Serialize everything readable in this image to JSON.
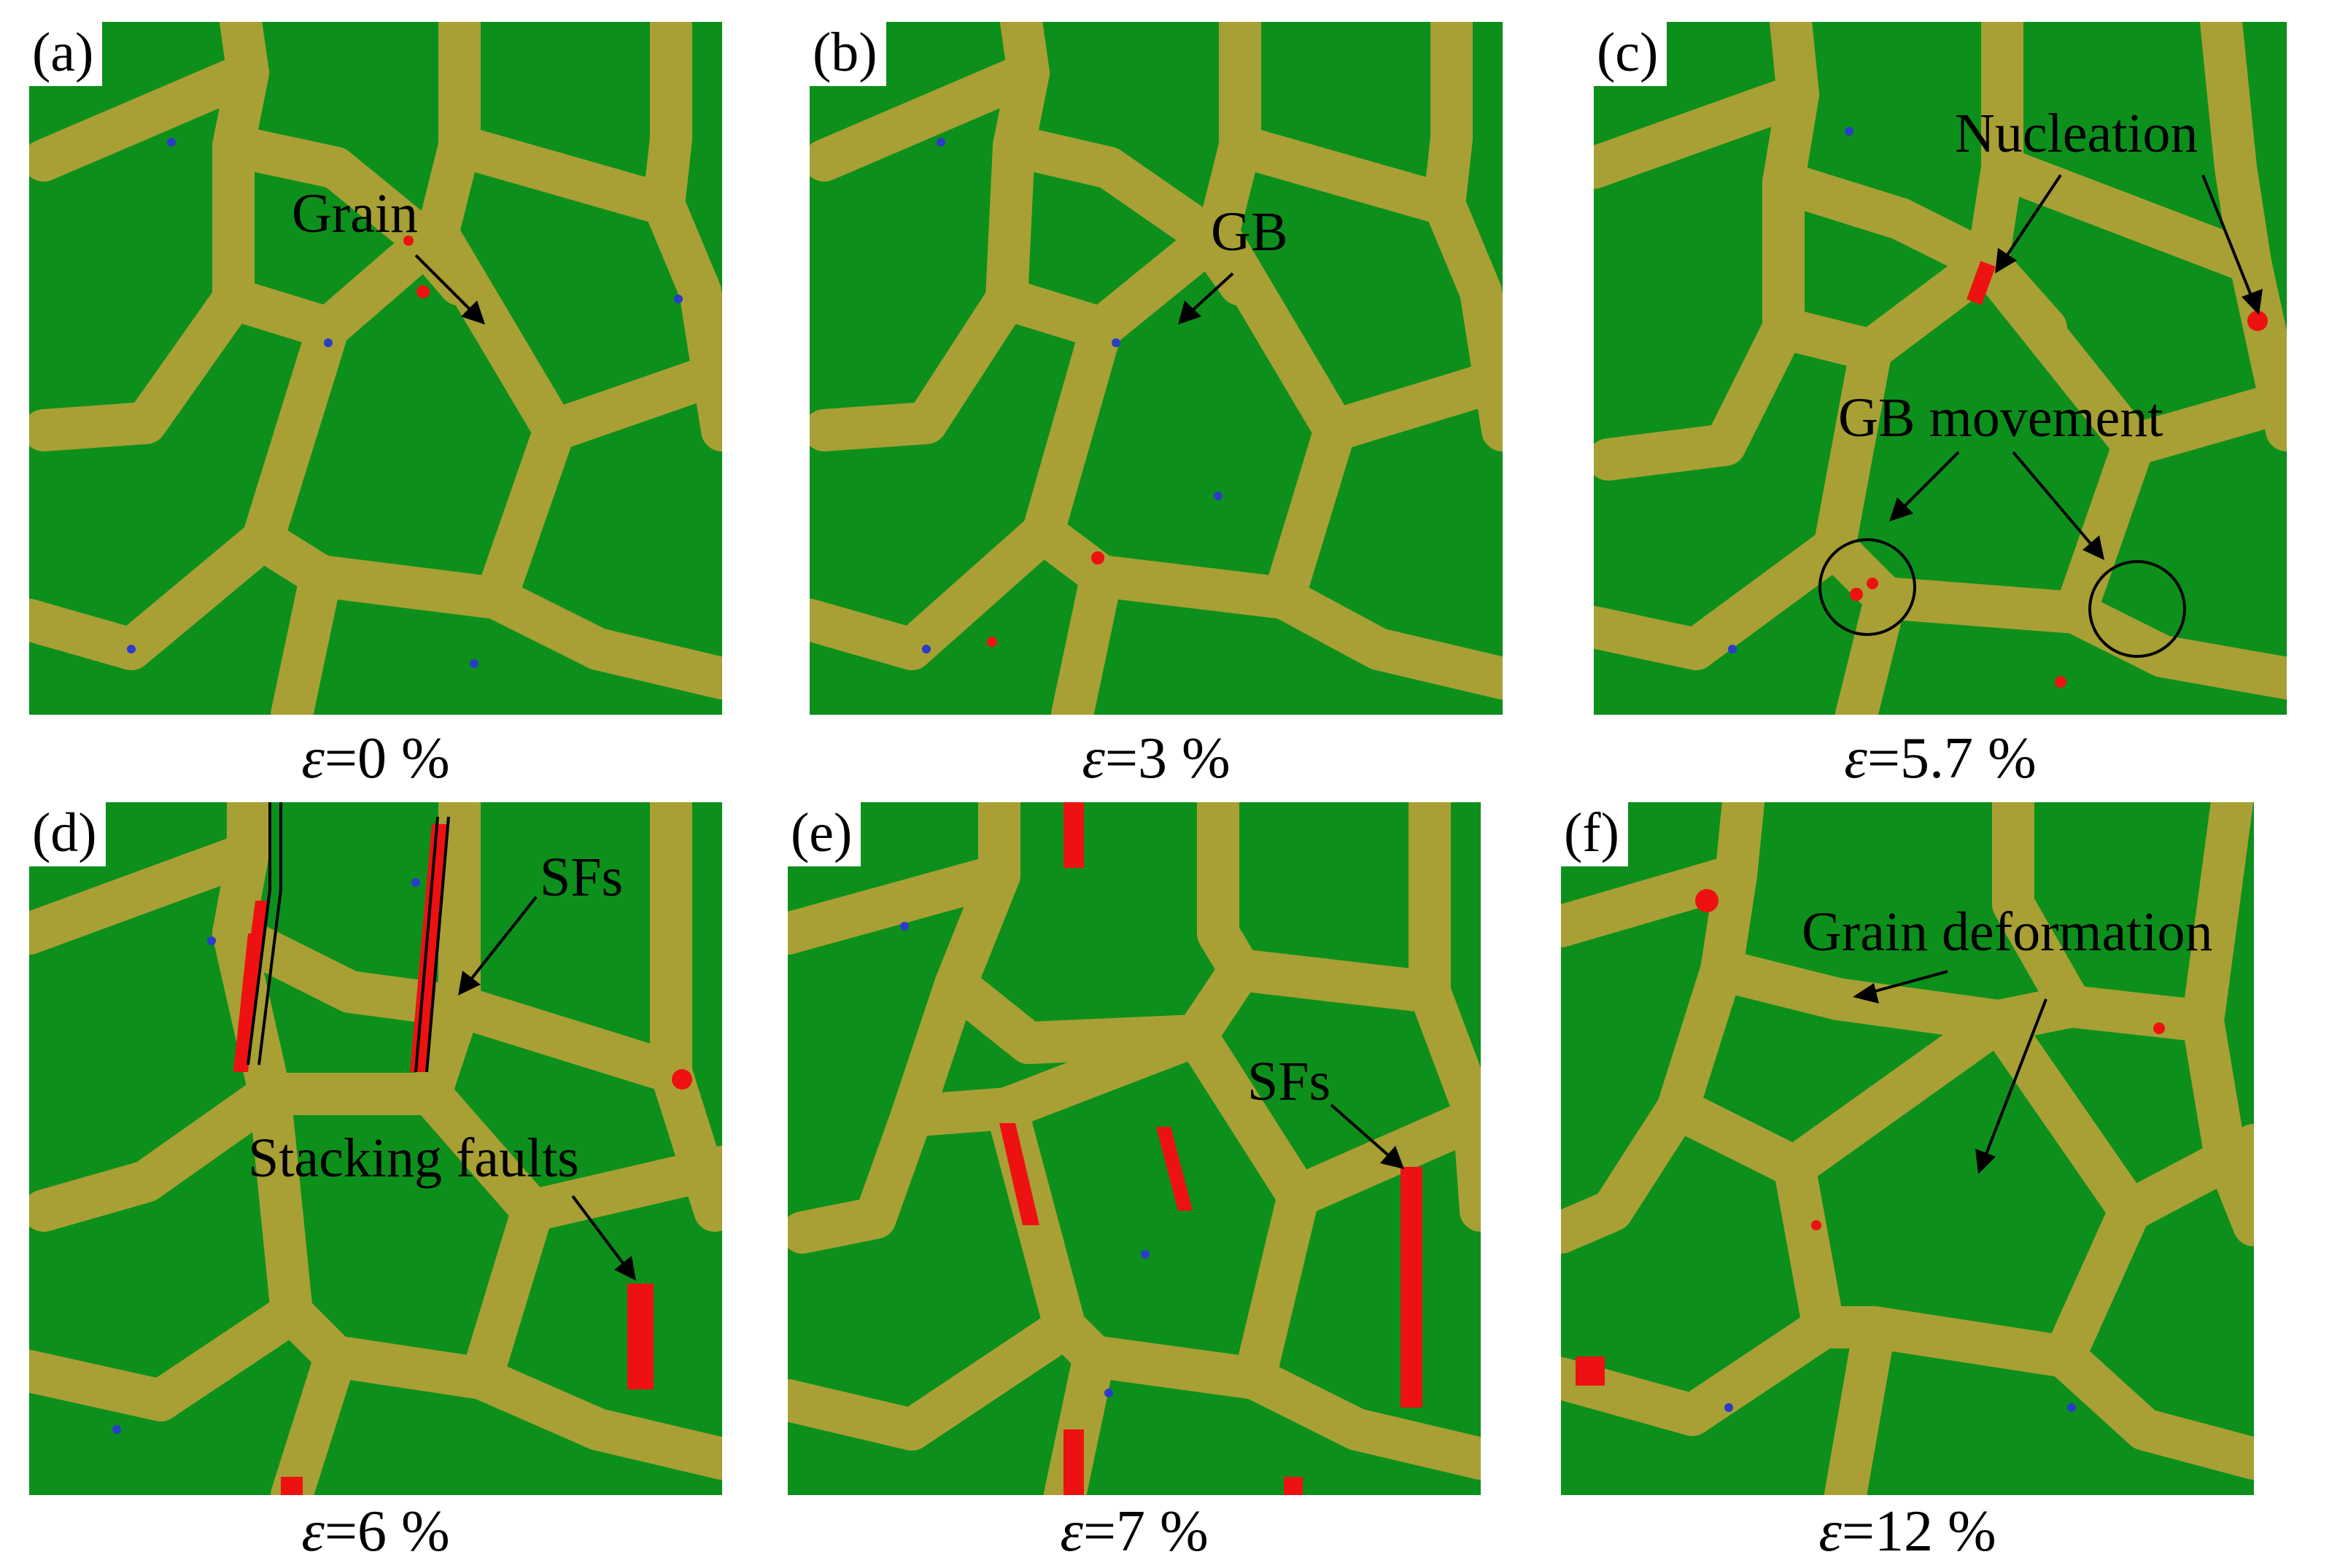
{
  "panels": [
    {
      "id": "a",
      "label": "(a)",
      "strain": "=0 %",
      "annotations": [
        {
          "key": "grain",
          "text": "Grain"
        }
      ]
    },
    {
      "id": "b",
      "label": "(b)",
      "strain": "=3 %",
      "annotations": [
        {
          "key": "gb",
          "text": "GB"
        }
      ]
    },
    {
      "id": "c",
      "label": "(c)",
      "strain": "=5.7 %",
      "annotations": [
        {
          "key": "nucleation",
          "text": "Nucleation"
        },
        {
          "key": "gb-movement",
          "text": "GB movement"
        }
      ]
    },
    {
      "id": "d",
      "label": "(d)",
      "strain": "=6 %",
      "annotations": [
        {
          "key": "sfs",
          "text": "SFs"
        },
        {
          "key": "stacking-faults",
          "text": "Stacking faults"
        }
      ]
    },
    {
      "id": "e",
      "label": "(e)",
      "strain": "=7 %",
      "annotations": [
        {
          "key": "sfs",
          "text": "SFs"
        }
      ]
    },
    {
      "id": "f",
      "label": "(f)",
      "strain": "=12 %",
      "annotations": [
        {
          "key": "grain-deformation",
          "text": "Grain deformation"
        }
      ]
    }
  ],
  "epsilon_symbol": "ε",
  "colors": {
    "grain": "#0d8f1c",
    "grain_boundary": "#a8a035",
    "stacking_fault": "#ee1111",
    "other_atoms": "#2a3cc8",
    "annotation": "#000000"
  }
}
